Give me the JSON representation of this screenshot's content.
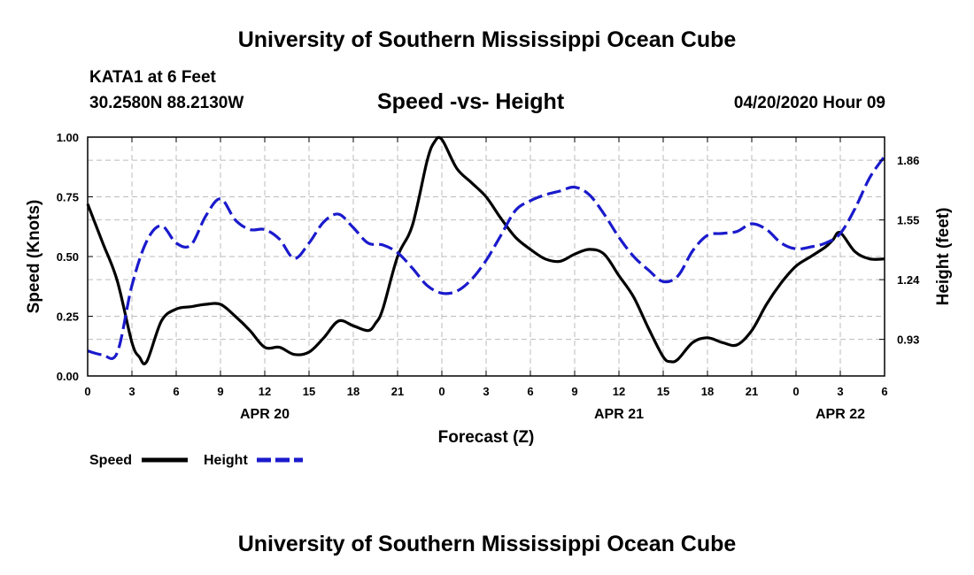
{
  "header": {
    "title": "University of Southern Mississippi Ocean Cube",
    "station": "KATA1 at 6 Feet",
    "coords": "30.2580N 88.2130W",
    "plot_title": "Speed -vs- Height",
    "datetime": "04/20/2020 Hour 09"
  },
  "footer": {
    "title": "University of Southern Mississippi Ocean Cube"
  },
  "legend": {
    "speed_label": "Speed",
    "height_label": "Height"
  },
  "colors": {
    "speed": "#000000",
    "height": "#1a1acc",
    "grid": "#bbbbbb"
  },
  "chart_data": {
    "type": "line",
    "title": "Speed -vs- Height",
    "xlabel": "Forecast (Z)",
    "ylabel_left": "Speed (Knots)",
    "ylabel_right": "Height (feet)",
    "xlim": [
      0,
      54
    ],
    "ylim_left": [
      0,
      1
    ],
    "ylim_right": [
      0.74,
      1.98
    ],
    "x_ticks": [
      0,
      3,
      6,
      9,
      12,
      15,
      18,
      21,
      24,
      27,
      30,
      33,
      36,
      39,
      42,
      45,
      48,
      51,
      54
    ],
    "x_tick_labels": [
      "0",
      "3",
      "6",
      "9",
      "12",
      "15",
      "18",
      "21",
      "0",
      "3",
      "6",
      "9",
      "12",
      "15",
      "18",
      "21",
      "0",
      "3",
      "6"
    ],
    "date_labels": [
      {
        "x": 12,
        "label": "APR 20"
      },
      {
        "x": 36,
        "label": "APR 21"
      },
      {
        "x": 51,
        "label": "APR 22"
      }
    ],
    "y_ticks_left": [
      0,
      0.25,
      0.5,
      0.75,
      1.0
    ],
    "y_tick_labels_left": [
      "0.00",
      "0.25",
      "0.50",
      "0.75",
      "1.00"
    ],
    "y_ticks_right": [
      0.93,
      1.24,
      1.55,
      1.86
    ],
    "y_tick_labels_right": [
      "0.93",
      "1.24",
      "1.55",
      "1.86"
    ],
    "grid": true,
    "series": [
      {
        "name": "Speed",
        "axis": "left",
        "x": [
          0,
          1,
          2,
          3,
          3.5,
          4,
          5,
          6,
          7,
          8,
          9,
          10,
          11,
          12,
          13,
          14,
          15,
          16,
          17,
          18,
          19,
          19.5,
          20,
          21,
          22,
          23,
          23.5,
          24,
          25,
          26,
          27,
          28,
          29,
          30,
          31,
          32,
          33,
          34,
          35,
          36,
          37,
          38,
          39,
          39.5,
          40,
          41,
          42,
          43,
          44,
          45,
          46,
          47,
          48,
          49,
          50,
          50.5,
          51,
          52,
          53,
          54
        ],
        "values": [
          0.72,
          0.56,
          0.4,
          0.14,
          0.08,
          0.06,
          0.23,
          0.28,
          0.29,
          0.3,
          0.3,
          0.25,
          0.19,
          0.12,
          0.12,
          0.09,
          0.1,
          0.16,
          0.23,
          0.21,
          0.19,
          0.22,
          0.28,
          0.5,
          0.63,
          0.9,
          0.98,
          0.99,
          0.87,
          0.81,
          0.75,
          0.66,
          0.58,
          0.53,
          0.49,
          0.48,
          0.51,
          0.53,
          0.51,
          0.42,
          0.33,
          0.2,
          0.08,
          0.06,
          0.07,
          0.14,
          0.16,
          0.14,
          0.13,
          0.19,
          0.3,
          0.39,
          0.46,
          0.5,
          0.54,
          0.57,
          0.6,
          0.52,
          0.49,
          0.49
        ]
      },
      {
        "name": "Height",
        "axis": "right",
        "x": [
          0,
          1,
          2,
          3,
          4,
          5,
          6,
          7,
          8,
          9,
          10,
          11,
          12,
          13,
          14,
          15,
          16,
          17,
          18,
          19,
          20,
          21,
          22,
          23,
          24,
          25,
          26,
          27,
          28,
          29,
          30,
          31,
          32,
          33,
          34,
          35,
          36,
          37,
          38,
          39,
          40,
          41,
          42,
          43,
          44,
          45,
          46,
          47,
          48,
          49,
          50,
          51,
          52,
          53,
          54
        ],
        "values": [
          0.87,
          0.85,
          0.86,
          1.21,
          1.44,
          1.52,
          1.43,
          1.42,
          1.57,
          1.66,
          1.55,
          1.5,
          1.5,
          1.45,
          1.35,
          1.43,
          1.54,
          1.58,
          1.51,
          1.43,
          1.42,
          1.38,
          1.3,
          1.21,
          1.17,
          1.18,
          1.24,
          1.34,
          1.47,
          1.6,
          1.65,
          1.68,
          1.7,
          1.72,
          1.68,
          1.58,
          1.46,
          1.36,
          1.29,
          1.23,
          1.26,
          1.39,
          1.47,
          1.48,
          1.49,
          1.53,
          1.5,
          1.43,
          1.4,
          1.41,
          1.43,
          1.48,
          1.61,
          1.77,
          1.88
        ]
      }
    ]
  }
}
